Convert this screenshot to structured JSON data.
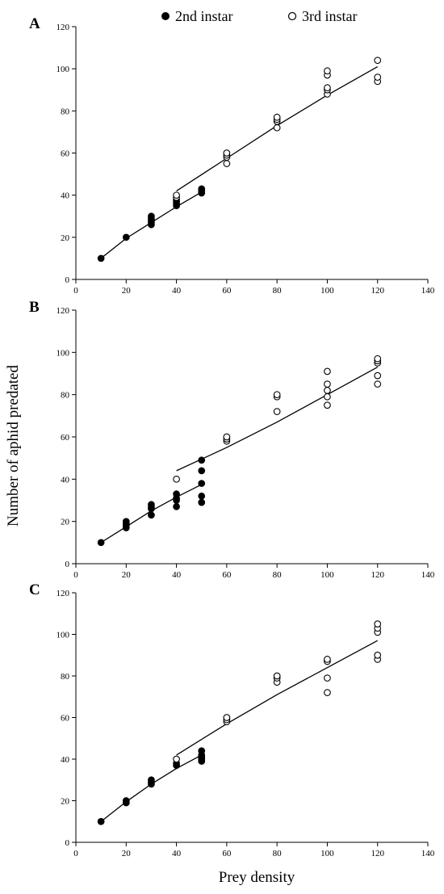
{
  "legend": {
    "items": [
      {
        "label": "2nd instar",
        "marker": "filled-circle"
      },
      {
        "label": "3rd instar",
        "marker": "open-circle"
      }
    ]
  },
  "ylabel": "Number of aphid predated",
  "xlabel": "Prey density",
  "chart_data": [
    {
      "type": "scatter",
      "panel_label": "A",
      "xlim": [
        0,
        140
      ],
      "ylim": [
        0,
        120
      ],
      "x_ticks": [
        0,
        20,
        40,
        60,
        80,
        100,
        120,
        140
      ],
      "y_ticks": [
        0,
        20,
        40,
        60,
        80,
        100,
        120
      ],
      "series": [
        {
          "name": "2nd instar",
          "marker": "filled",
          "points": [
            [
              10,
              10
            ],
            [
              20,
              20
            ],
            [
              30,
              26
            ],
            [
              30,
              27
            ],
            [
              30,
              28
            ],
            [
              30,
              29
            ],
            [
              30,
              30
            ],
            [
              40,
              35
            ],
            [
              40,
              36
            ],
            [
              40,
              37
            ],
            [
              40,
              38
            ],
            [
              50,
              41
            ],
            [
              50,
              42
            ],
            [
              50,
              43
            ]
          ],
          "fit": [
            [
              10,
              10
            ],
            [
              20,
              19.5
            ],
            [
              30,
              27
            ],
            [
              40,
              34.5
            ],
            [
              50,
              41.5
            ]
          ]
        },
        {
          "name": "3rd instar",
          "marker": "open",
          "points": [
            [
              40,
              39
            ],
            [
              40,
              40
            ],
            [
              60,
              55
            ],
            [
              60,
              58
            ],
            [
              60,
              59
            ],
            [
              60,
              60
            ],
            [
              80,
              72
            ],
            [
              80,
              75
            ],
            [
              80,
              76
            ],
            [
              80,
              77
            ],
            [
              100,
              88
            ],
            [
              100,
              90
            ],
            [
              100,
              91
            ],
            [
              100,
              97
            ],
            [
              100,
              99
            ],
            [
              120,
              94
            ],
            [
              120,
              96
            ],
            [
              120,
              104
            ]
          ],
          "fit": [
            [
              40,
              42
            ],
            [
              60,
              57.5
            ],
            [
              80,
              73
            ],
            [
              100,
              87.5
            ],
            [
              120,
              101
            ]
          ]
        }
      ]
    },
    {
      "type": "scatter",
      "panel_label": "B",
      "xlim": [
        0,
        140
      ],
      "ylim": [
        0,
        120
      ],
      "x_ticks": [
        0,
        20,
        40,
        60,
        80,
        100,
        120,
        140
      ],
      "y_ticks": [
        0,
        20,
        40,
        60,
        80,
        100,
        120
      ],
      "series": [
        {
          "name": "2nd instar",
          "marker": "filled",
          "points": [
            [
              10,
              10
            ],
            [
              20,
              17
            ],
            [
              20,
              18
            ],
            [
              20,
              19
            ],
            [
              20,
              20
            ],
            [
              30,
              23
            ],
            [
              30,
              26
            ],
            [
              30,
              27
            ],
            [
              30,
              28
            ],
            [
              40,
              27
            ],
            [
              40,
              30
            ],
            [
              40,
              31
            ],
            [
              40,
              33
            ],
            [
              50,
              29
            ],
            [
              50,
              32
            ],
            [
              50,
              38
            ],
            [
              50,
              44
            ],
            [
              50,
              49
            ]
          ],
          "fit": [
            [
              10,
              10
            ],
            [
              20,
              17.5
            ],
            [
              30,
              25
            ],
            [
              40,
              31.5
            ],
            [
              50,
              37.5
            ]
          ]
        },
        {
          "name": "3rd instar",
          "marker": "open",
          "points": [
            [
              40,
              40
            ],
            [
              60,
              58
            ],
            [
              60,
              59
            ],
            [
              60,
              60
            ],
            [
              80,
              72
            ],
            [
              80,
              79
            ],
            [
              80,
              80
            ],
            [
              100,
              75
            ],
            [
              100,
              79
            ],
            [
              100,
              82
            ],
            [
              100,
              85
            ],
            [
              100,
              91
            ],
            [
              120,
              85
            ],
            [
              120,
              89
            ],
            [
              120,
              95
            ],
            [
              120,
              96
            ],
            [
              120,
              97
            ]
          ],
          "fit": [
            [
              40,
              44
            ],
            [
              60,
              55
            ],
            [
              80,
              67
            ],
            [
              100,
              80
            ],
            [
              120,
              93
            ]
          ]
        }
      ]
    },
    {
      "type": "scatter",
      "panel_label": "C",
      "xlim": [
        0,
        140
      ],
      "ylim": [
        0,
        120
      ],
      "x_ticks": [
        0,
        20,
        40,
        60,
        80,
        100,
        120,
        140
      ],
      "y_ticks": [
        0,
        20,
        40,
        60,
        80,
        100,
        120
      ],
      "series": [
        {
          "name": "2nd instar",
          "marker": "filled",
          "points": [
            [
              10,
              10
            ],
            [
              20,
              19
            ],
            [
              20,
              20
            ],
            [
              30,
              28
            ],
            [
              30,
              29
            ],
            [
              30,
              30
            ],
            [
              40,
              37
            ],
            [
              40,
              38
            ],
            [
              50,
              39
            ],
            [
              50,
              40
            ],
            [
              50,
              41
            ],
            [
              50,
              42
            ],
            [
              50,
              44
            ]
          ],
          "fit": [
            [
              10,
              10
            ],
            [
              20,
              19.5
            ],
            [
              30,
              28
            ],
            [
              40,
              35.5
            ],
            [
              50,
              42
            ]
          ]
        },
        {
          "name": "3rd instar",
          "marker": "open",
          "points": [
            [
              40,
              40
            ],
            [
              60,
              58
            ],
            [
              60,
              59
            ],
            [
              60,
              60
            ],
            [
              80,
              77
            ],
            [
              80,
              79
            ],
            [
              80,
              80
            ],
            [
              100,
              72
            ],
            [
              100,
              79
            ],
            [
              100,
              87
            ],
            [
              100,
              88
            ],
            [
              120,
              88
            ],
            [
              120,
              90
            ],
            [
              120,
              101
            ],
            [
              120,
              103
            ],
            [
              120,
              105
            ]
          ],
          "fit": [
            [
              40,
              42
            ],
            [
              60,
              57
            ],
            [
              80,
              71
            ],
            [
              100,
              84
            ],
            [
              120,
              97
            ]
          ]
        }
      ]
    }
  ]
}
